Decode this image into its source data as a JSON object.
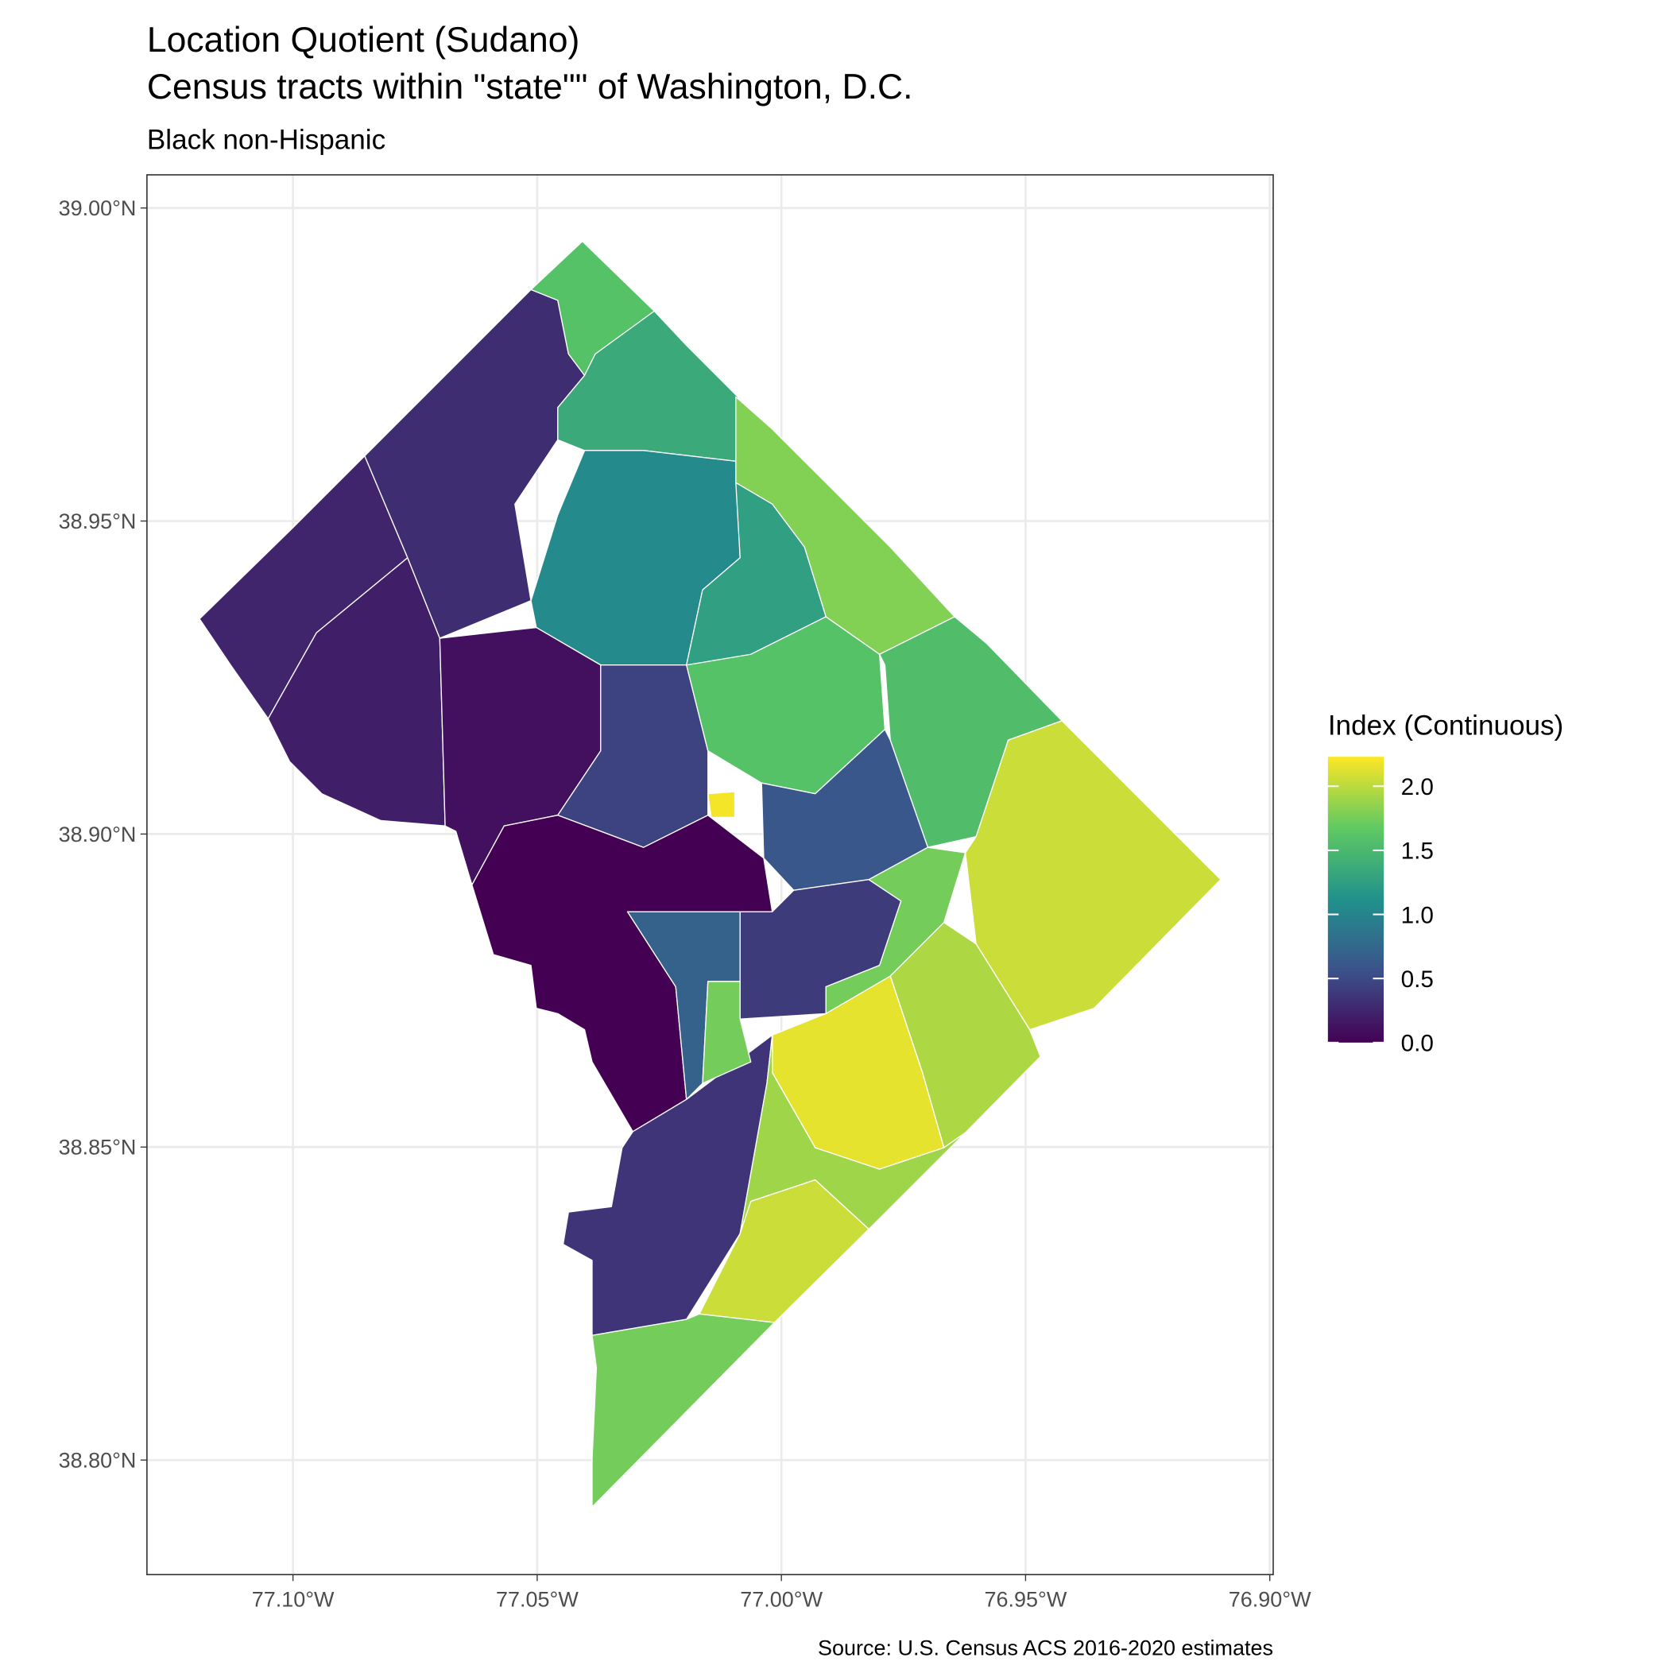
{
  "chart_data": {
    "type": "choropleth",
    "title": [
      "Location Quotient (Sudano)",
      "Census tracts within \"state\"\" of Washington, D.C."
    ],
    "subtitle": "Black non-Hispanic",
    "caption": "Source: U.S. Census ACS 2016-2020 estimates",
    "legend_title": "Index (Continuous)",
    "xlim": [
      -77.1299,
      -76.8993
    ],
    "ylim": [
      38.7817,
      39.0053
    ],
    "xticks": [
      {
        "value": -77.1,
        "label": "77.10°W"
      },
      {
        "value": -77.05,
        "label": "77.05°W"
      },
      {
        "value": -77.0,
        "label": "77.00°W"
      },
      {
        "value": -76.95,
        "label": "76.95°W"
      },
      {
        "value": -76.9,
        "label": "76.90°W"
      }
    ],
    "yticks": [
      {
        "value": 38.8,
        "label": "38.80°N"
      },
      {
        "value": 38.85,
        "label": "38.85°N"
      },
      {
        "value": 38.9,
        "label": "38.90°N"
      },
      {
        "value": 38.95,
        "label": "38.95°N"
      },
      {
        "value": 39.0,
        "label": "39.00°N"
      }
    ],
    "grid": true,
    "colorscale": [
      "#440154",
      "#3b528b",
      "#21918c",
      "#5ec962",
      "#fde725"
    ],
    "colorlim": [
      0,
      2.23
    ],
    "colorticks": [
      {
        "value": 0,
        "label": "0.0"
      },
      {
        "value": 0.5,
        "label": "0.5"
      },
      {
        "value": 1,
        "label": "1.0"
      },
      1.5,
      {
        "value": 2,
        "label": "2.0"
      }
    ],
    "values": [
      0.25,
      0.2,
      0.3,
      1.6,
      1.35,
      1.05,
      1.8,
      1.25,
      1.55,
      0.1,
      0.45,
      1.6,
      0.6,
      0.0,
      0.7,
      0.4,
      0.35,
      1.75,
      1.75,
      2.05,
      1.95,
      2.15,
      1.9,
      2.05,
      1.75,
      2.2
    ]
  }
}
